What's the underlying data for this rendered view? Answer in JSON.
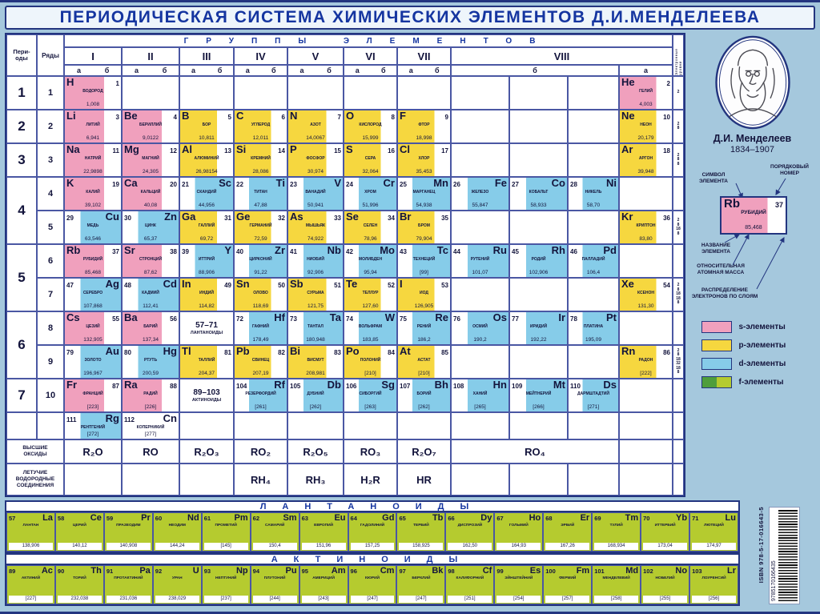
{
  "title": "ПЕРИОДИЧЕСКАЯ СИСТЕМА ХИМИЧЕСКИХ ЭЛЕМЕНТОВ Д.И.МЕНДЕЛЕЕВА",
  "colors": {
    "s": "#f0a0bd",
    "p": "#f6d73f",
    "d": "#86cce9",
    "f": "#b5cb2f",
    "f2": "#4f9e3c",
    "navy": "#23357f"
  },
  "header": {
    "groups_title": "ГРУППЫ ЭЛЕМЕНТОВ",
    "periods_label_1": "Пери-",
    "periods_label_2": "оды",
    "rows_label": "Ряды",
    "groups": [
      "I",
      "II",
      "III",
      "IV",
      "V",
      "VI",
      "VII",
      "VIII"
    ],
    "sub_a": "а",
    "sub_b": "б",
    "electron_label": "Электронные уровни"
  },
  "periods": [
    {
      "label": "1",
      "start": 1,
      "end": 1
    },
    {
      "label": "2",
      "start": 2,
      "end": 2
    },
    {
      "label": "3",
      "start": 3,
      "end": 3
    },
    {
      "label": "4",
      "start": 4,
      "end": 5
    },
    {
      "label": "5",
      "start": 6,
      "end": 7
    },
    {
      "label": "6",
      "start": 8,
      "end": 9
    },
    {
      "label": "7",
      "start": 10,
      "end": 10
    }
  ],
  "row_labels": [
    "1",
    "2",
    "3",
    "4",
    "5",
    "6",
    "7",
    "8",
    "9",
    "10"
  ],
  "element_rows": [
    {
      "econf": [
        "2"
      ],
      "cells": [
        {
          "c": 3,
          "n": "1",
          "s": "H",
          "nm": "ВОДОРОД",
          "m": "1,008",
          "k": "s"
        },
        {
          "c": 13,
          "n": "2",
          "s": "He",
          "nm": "ГЕЛИЙ",
          "m": "4,003",
          "k": "s"
        }
      ]
    },
    {
      "econf": [
        "2",
        "8"
      ],
      "cells": [
        {
          "c": 3,
          "n": "3",
          "s": "Li",
          "nm": "ЛИТИЙ",
          "m": "6,941",
          "k": "s"
        },
        {
          "c": 4,
          "n": "4",
          "s": "Be",
          "nm": "БЕРИЛЛИЙ",
          "m": "9,0122",
          "k": "s"
        },
        {
          "c": 5,
          "n": "5",
          "s": "B",
          "nm": "БОР",
          "m": "10,811",
          "k": "p"
        },
        {
          "c": 6,
          "n": "6",
          "s": "C",
          "nm": "УГЛЕРОД",
          "m": "12,011",
          "k": "p"
        },
        {
          "c": 7,
          "n": "7",
          "s": "N",
          "nm": "АЗОТ",
          "m": "14,0067",
          "k": "p"
        },
        {
          "c": 8,
          "n": "8",
          "s": "O",
          "nm": "КИСЛОРОД",
          "m": "15,999",
          "k": "p"
        },
        {
          "c": 9,
          "n": "9",
          "s": "F",
          "nm": "ФТОР",
          "m": "18,998",
          "k": "p"
        },
        {
          "c": 13,
          "n": "10",
          "s": "Ne",
          "nm": "НЕОН",
          "m": "20,179",
          "k": "p"
        }
      ]
    },
    {
      "econf": [
        "2",
        "8",
        "8"
      ],
      "cells": [
        {
          "c": 3,
          "n": "11",
          "s": "Na",
          "nm": "НАТРИЙ",
          "m": "22,9898",
          "k": "s"
        },
        {
          "c": 4,
          "n": "12",
          "s": "Mg",
          "nm": "МАГНИЙ",
          "m": "24,305",
          "k": "s"
        },
        {
          "c": 5,
          "n": "13",
          "s": "Al",
          "nm": "АЛЮМИНИЙ",
          "m": "26,98154",
          "k": "p"
        },
        {
          "c": 6,
          "n": "14",
          "s": "Si",
          "nm": "КРЕМНИЙ",
          "m": "28,086",
          "k": "p"
        },
        {
          "c": 7,
          "n": "15",
          "s": "P",
          "nm": "ФОСФОР",
          "m": "30,974",
          "k": "p"
        },
        {
          "c": 8,
          "n": "16",
          "s": "S",
          "nm": "СЕРА",
          "m": "32,064",
          "k": "p"
        },
        {
          "c": 9,
          "n": "17",
          "s": "Cl",
          "nm": "ХЛОР",
          "m": "35,453",
          "k": "p"
        },
        {
          "c": 13,
          "n": "18",
          "s": "Ar",
          "nm": "АРГОН",
          "m": "39,948",
          "k": "p"
        }
      ]
    },
    {
      "cells": [
        {
          "c": 3,
          "n": "19",
          "s": "K",
          "nm": "КАЛИЙ",
          "m": "39,102",
          "k": "s"
        },
        {
          "c": 4,
          "n": "20",
          "s": "Ca",
          "nm": "КАЛЬЦИЙ",
          "m": "40,08",
          "k": "s"
        },
        {
          "c": 5,
          "n": "21",
          "s": "Sc",
          "nm": "СКАНДИЙ",
          "m": "44,956",
          "k": "d"
        },
        {
          "c": 6,
          "n": "22",
          "s": "Ti",
          "nm": "ТИТАН",
          "m": "47,88",
          "k": "d"
        },
        {
          "c": 7,
          "n": "23",
          "s": "V",
          "nm": "ВАНАДИЙ",
          "m": "50,941",
          "k": "d"
        },
        {
          "c": 8,
          "n": "24",
          "s": "Cr",
          "nm": "ХРОМ",
          "m": "51,996",
          "k": "d"
        },
        {
          "c": 9,
          "n": "25",
          "s": "Mn",
          "nm": "МАРГАНЕЦ",
          "m": "54,938",
          "k": "d"
        },
        {
          "c": 10,
          "n": "26",
          "s": "Fe",
          "nm": "ЖЕЛЕЗО",
          "m": "55,847",
          "k": "d"
        },
        {
          "c": 11,
          "n": "27",
          "s": "Co",
          "nm": "КОБАЛЬТ",
          "m": "58,933",
          "k": "d"
        },
        {
          "c": 12,
          "n": "28",
          "s": "Ni",
          "nm": "НИКЕЛЬ",
          "m": "58,70",
          "k": "d"
        }
      ]
    },
    {
      "econf": [
        "2",
        "8",
        "18",
        "8"
      ],
      "cells": [
        {
          "c": 3,
          "n": "29",
          "s": "Cu",
          "nm": "МЕДЬ",
          "m": "63,546",
          "k": "d"
        },
        {
          "c": 4,
          "n": "30",
          "s": "Zn",
          "nm": "ЦИНК",
          "m": "65,37",
          "k": "d"
        },
        {
          "c": 5,
          "n": "31",
          "s": "Ga",
          "nm": "ГАЛЛИЙ",
          "m": "69,72",
          "k": "p"
        },
        {
          "c": 6,
          "n": "32",
          "s": "Ge",
          "nm": "ГЕРМАНИЙ",
          "m": "72,59",
          "k": "p"
        },
        {
          "c": 7,
          "n": "33",
          "s": "As",
          "nm": "МЫШЬЯК",
          "m": "74,922",
          "k": "p"
        },
        {
          "c": 8,
          "n": "34",
          "s": "Se",
          "nm": "СЕЛЕН",
          "m": "78,96",
          "k": "p"
        },
        {
          "c": 9,
          "n": "35",
          "s": "Br",
          "nm": "БРОМ",
          "m": "79,904",
          "k": "p"
        },
        {
          "c": 13,
          "n": "36",
          "s": "Kr",
          "nm": "КРИПТОН",
          "m": "83,80",
          "k": "p"
        }
      ]
    },
    {
      "cells": [
        {
          "c": 3,
          "n": "37",
          "s": "Rb",
          "nm": "РУБИДИЙ",
          "m": "85,468",
          "k": "s"
        },
        {
          "c": 4,
          "n": "38",
          "s": "Sr",
          "nm": "СТРОНЦИЙ",
          "m": "87,62",
          "k": "s"
        },
        {
          "c": 5,
          "n": "39",
          "s": "Y",
          "nm": "ИТТРИЙ",
          "m": "88,906",
          "k": "d"
        },
        {
          "c": 6,
          "n": "40",
          "s": "Zr",
          "nm": "ЦИРКОНИЙ",
          "m": "91,22",
          "k": "d"
        },
        {
          "c": 7,
          "n": "41",
          "s": "Nb",
          "nm": "НИОБИЙ",
          "m": "92,906",
          "k": "d"
        },
        {
          "c": 8,
          "n": "42",
          "s": "Mo",
          "nm": "МОЛИБДЕН",
          "m": "95,94",
          "k": "d"
        },
        {
          "c": 9,
          "n": "43",
          "s": "Tc",
          "nm": "ТЕХНЕЦИЙ",
          "m": "[99]",
          "k": "d"
        },
        {
          "c": 10,
          "n": "44",
          "s": "Ru",
          "nm": "РУТЕНИЙ",
          "m": "101,07",
          "k": "d"
        },
        {
          "c": 11,
          "n": "45",
          "s": "Rh",
          "nm": "РОДИЙ",
          "m": "102,906",
          "k": "d"
        },
        {
          "c": 12,
          "n": "46",
          "s": "Pd",
          "nm": "ПАЛЛАДИЙ",
          "m": "106,4",
          "k": "d"
        }
      ]
    },
    {
      "econf": [
        "2",
        "8",
        "18",
        "18",
        "8"
      ],
      "cells": [
        {
          "c": 3,
          "n": "47",
          "s": "Ag",
          "nm": "СЕРЕБРО",
          "m": "107,868",
          "k": "d"
        },
        {
          "c": 4,
          "n": "48",
          "s": "Cd",
          "nm": "КАДМИЙ",
          "m": "112,41",
          "k": "d"
        },
        {
          "c": 5,
          "n": "49",
          "s": "In",
          "nm": "ИНДИЙ",
          "m": "114,82",
          "k": "p"
        },
        {
          "c": 6,
          "n": "50",
          "s": "Sn",
          "nm": "ОЛОВО",
          "m": "118,69",
          "k": "p"
        },
        {
          "c": 7,
          "n": "51",
          "s": "Sb",
          "nm": "СУРЬМА",
          "m": "121,75",
          "k": "p"
        },
        {
          "c": 8,
          "n": "52",
          "s": "Te",
          "nm": "ТЕЛЛУР",
          "m": "127,60",
          "k": "p"
        },
        {
          "c": 9,
          "n": "53",
          "s": "I",
          "nm": "ИОД",
          "m": "126,905",
          "k": "p"
        },
        {
          "c": 13,
          "n": "54",
          "s": "Xe",
          "nm": "КСЕНОН",
          "m": "131,30",
          "k": "p"
        }
      ]
    },
    {
      "cells": [
        {
          "c": 3,
          "n": "55",
          "s": "Cs",
          "nm": "ЦЕЗИЙ",
          "m": "132,905",
          "k": "s"
        },
        {
          "c": 4,
          "n": "56",
          "s": "Ba",
          "nm": "БАРИЙ",
          "m": "137,34",
          "k": "s"
        },
        {
          "c": 5,
          "box": true,
          "n": "57–71",
          "nm": "ЛАНТАНОИДЫ"
        },
        {
          "c": 6,
          "n": "72",
          "s": "Hf",
          "nm": "ГАФНИЙ",
          "m": "178,49",
          "k": "d"
        },
        {
          "c": 7,
          "n": "73",
          "s": "Ta",
          "nm": "ТАНТАЛ",
          "m": "180,948",
          "k": "d"
        },
        {
          "c": 8,
          "n": "74",
          "s": "W",
          "nm": "ВОЛЬФРАМ",
          "m": "183,85",
          "k": "d"
        },
        {
          "c": 9,
          "n": "75",
          "s": "Re",
          "nm": "РЕНИЙ",
          "m": "186,2",
          "k": "d"
        },
        {
          "c": 10,
          "n": "76",
          "s": "Os",
          "nm": "ОСМИЙ",
          "m": "190,2",
          "k": "d"
        },
        {
          "c": 11,
          "n": "77",
          "s": "Ir",
          "nm": "ИРИДИЙ",
          "m": "192,22",
          "k": "d"
        },
        {
          "c": 12,
          "n": "78",
          "s": "Pt",
          "nm": "ПЛАТИНА",
          "m": "195,09",
          "k": "d"
        }
      ]
    },
    {
      "econf": [
        "2",
        "8",
        "18",
        "32",
        "18",
        "8"
      ],
      "cells": [
        {
          "c": 3,
          "n": "79",
          "s": "Au",
          "nm": "ЗОЛОТО",
          "m": "196,967",
          "k": "d"
        },
        {
          "c": 4,
          "n": "80",
          "s": "Hg",
          "nm": "РТУТЬ",
          "m": "200,59",
          "k": "d"
        },
        {
          "c": 5,
          "n": "81",
          "s": "Tl",
          "nm": "ТАЛЛИЙ",
          "m": "204,37",
          "k": "p"
        },
        {
          "c": 6,
          "n": "82",
          "s": "Pb",
          "nm": "СВИНЕЦ",
          "m": "207,19",
          "k": "p"
        },
        {
          "c": 7,
          "n": "83",
          "s": "Bi",
          "nm": "ВИСМУТ",
          "m": "208,981",
          "k": "p"
        },
        {
          "c": 8,
          "n": "84",
          "s": "Po",
          "nm": "ПОЛОНИЙ",
          "m": "[210]",
          "k": "p"
        },
        {
          "c": 9,
          "n": "85",
          "s": "At",
          "nm": "АСТАТ",
          "m": "[210]",
          "k": "p"
        },
        {
          "c": 13,
          "n": "86",
          "s": "Rn",
          "nm": "РАДОН",
          "m": "[222]",
          "k": "p"
        }
      ]
    },
    {
      "cells": [
        {
          "c": 3,
          "n": "87",
          "s": "Fr",
          "nm": "ФРАНЦИЙ",
          "m": "[223]",
          "k": "s"
        },
        {
          "c": 4,
          "n": "88",
          "s": "Ra",
          "nm": "РАДИЙ",
          "m": "[226]",
          "k": "s"
        },
        {
          "c": 5,
          "box": true,
          "n": "89–103",
          "nm": "АКТИНОИДЫ"
        },
        {
          "c": 6,
          "n": "104",
          "s": "Rf",
          "nm": "РЕЗЕРФОРДИЙ",
          "m": "[261]",
          "k": "d"
        },
        {
          "c": 7,
          "n": "105",
          "s": "Db",
          "nm": "ДУБНИЙ",
          "m": "[262]",
          "k": "d"
        },
        {
          "c": 8,
          "n": "106",
          "s": "Sg",
          "nm": "СИБОРГИЙ",
          "m": "[263]",
          "k": "d"
        },
        {
          "c": 9,
          "n": "107",
          "s": "Bh",
          "nm": "БОРИЙ",
          "m": "[262]",
          "k": "d"
        },
        {
          "c": 10,
          "n": "108",
          "s": "Hn",
          "nm": "ХАНИЙ",
          "m": "[265]",
          "k": "d"
        },
        {
          "c": 11,
          "n": "109",
          "s": "Mt",
          "nm": "МЕЙТНЕРИЙ",
          "m": "[266]",
          "k": "d"
        },
        {
          "c": 12,
          "n": "110",
          "s": "Ds",
          "nm": "ДАРМШТАДТИЙ",
          "m": "[271]",
          "k": "d"
        }
      ]
    },
    {
      "cells": [
        {
          "c": 3,
          "n": "111",
          "s": "Rg",
          "nm": "РЕНТГЕНИЙ",
          "m": "[272]",
          "k": "d"
        },
        {
          "c": 4,
          "n": "112",
          "s": "Cn",
          "nm": "КОПЕРНИКИЙ",
          "m": "[277]",
          "k": "w",
          "nl": true
        }
      ]
    }
  ],
  "oxides": {
    "label": "ВЫСШИЕ ОКСИДЫ",
    "cells": [
      {
        "col": 3,
        "t": "R₂O"
      },
      {
        "col": 4,
        "t": "RO"
      },
      {
        "col": 5,
        "t": "R₂O₃"
      },
      {
        "col": 6,
        "t": "RO₂"
      },
      {
        "col": 7,
        "t": "R₂O₅"
      },
      {
        "col": 8,
        "t": "RO₃"
      },
      {
        "col": 9,
        "t": "R₂O₇"
      },
      {
        "col": 10,
        "span": 3,
        "t": "RO₄"
      }
    ]
  },
  "hydrides": {
    "label": "ЛЕТУЧИЕ ВОДОРОДНЫЕ СОЕДИНЕНИЯ",
    "cells": [
      {
        "col": 6,
        "t": "RH₄"
      },
      {
        "col": 7,
        "t": "RH₃"
      },
      {
        "col": 8,
        "t": "H₂R"
      },
      {
        "col": 9,
        "t": "HR"
      }
    ]
  },
  "bottom": {
    "lanthanides_title": "ЛАНТАНОИДЫ",
    "actinides_title": "АКТИНОИДЫ",
    "lanthanides": [
      {
        "n": "57",
        "s": "La",
        "nm": "ЛАНТАН",
        "m": "138,906"
      },
      {
        "n": "58",
        "s": "Ce",
        "nm": "ЦЕРИЙ",
        "m": "140,12"
      },
      {
        "n": "59",
        "s": "Pr",
        "nm": "ПРАЗЕОДИМ",
        "m": "140,908"
      },
      {
        "n": "60",
        "s": "Nd",
        "nm": "НЕОДИМ",
        "m": "144,24"
      },
      {
        "n": "61",
        "s": "Pm",
        "nm": "ПРОМЕТИЙ",
        "m": "[145]"
      },
      {
        "n": "62",
        "s": "Sm",
        "nm": "САМАРИЙ",
        "m": "150,4"
      },
      {
        "n": "63",
        "s": "Eu",
        "nm": "ЕВРОПИЙ",
        "m": "151,96"
      },
      {
        "n": "64",
        "s": "Gd",
        "nm": "ГАДОЛИНИЙ",
        "m": "157,25"
      },
      {
        "n": "65",
        "s": "Tb",
        "nm": "ТЕРБИЙ",
        "m": "158,925"
      },
      {
        "n": "66",
        "s": "Dy",
        "nm": "ДИСПРОЗИЙ",
        "m": "162,50"
      },
      {
        "n": "67",
        "s": "Ho",
        "nm": "ГОЛЬМИЙ",
        "m": "164,93"
      },
      {
        "n": "68",
        "s": "Er",
        "nm": "ЭРБИЙ",
        "m": "167,26"
      },
      {
        "n": "69",
        "s": "Tm",
        "nm": "ТУЛИЙ",
        "m": "168,934"
      },
      {
        "n": "70",
        "s": "Yb",
        "nm": "ИТТЕРБИЙ",
        "m": "173,04"
      },
      {
        "n": "71",
        "s": "Lu",
        "nm": "ЛЮТЕЦИЙ",
        "m": "174,97"
      }
    ],
    "actinides": [
      {
        "n": "89",
        "s": "Ac",
        "nm": "АКТИНИЙ",
        "m": "[227]"
      },
      {
        "n": "90",
        "s": "Th",
        "nm": "ТОРИЙ",
        "m": "232,038"
      },
      {
        "n": "91",
        "s": "Pa",
        "nm": "ПРОТАКТИ­НИЙ",
        "m": "231,036"
      },
      {
        "n": "92",
        "s": "U",
        "nm": "УРАН",
        "m": "238,029"
      },
      {
        "n": "93",
        "s": "Np",
        "nm": "НЕПТУНИЙ",
        "m": "[237]"
      },
      {
        "n": "94",
        "s": "Pu",
        "nm": "ПЛУТОНИЙ",
        "m": "[244]"
      },
      {
        "n": "95",
        "s": "Am",
        "nm": "АМЕРИЦИЙ",
        "m": "[243]"
      },
      {
        "n": "96",
        "s": "Cm",
        "nm": "КЮРИЙ",
        "m": "[247]"
      },
      {
        "n": "97",
        "s": "Bk",
        "nm": "БЕРКЛИЙ",
        "m": "[247]"
      },
      {
        "n": "98",
        "s": "Cf",
        "nm": "КАЛИФОРНИЙ",
        "m": "[251]"
      },
      {
        "n": "99",
        "s": "Es",
        "nm": "ЭЙНШТЕЙНИЙ",
        "m": "[254]"
      },
      {
        "n": "100",
        "s": "Fm",
        "nm": "ФЕРМИЙ",
        "m": "[257]"
      },
      {
        "n": "101",
        "s": "Md",
        "nm": "МЕНДЕЛЕВИЙ",
        "m": "[258]"
      },
      {
        "n": "102",
        "s": "No",
        "nm": "НОБЕЛИЙ",
        "m": "[255]"
      },
      {
        "n": "103",
        "s": "Lr",
        "nm": "ЛОУРЕНСИЙ",
        "m": "[256]"
      }
    ]
  },
  "sidebar": {
    "portrait_name": "Д.И. Менделеев",
    "years": "1834–1907",
    "labels": {
      "symbol": "СИМВОЛ ЭЛЕМЕНТА",
      "number": "ПОРЯДКОВЫЙ НОМЕР",
      "name": "НАЗВАНИЕ ЭЛЕМЕНТА",
      "mass": "ОТНОСИТЕЛЬНАЯ АТОМНАЯ МАССА",
      "electrons": "РАСПРЕДЕЛЕНИЕ ЭЛЕКТРОНОВ ПО СЛОЯМ"
    },
    "sample": {
      "n": "37",
      "s": "Rb",
      "nm": "РУБИДИЙ",
      "m": "85,468"
    },
    "legend": [
      {
        "k": "s",
        "label": "s-элементы"
      },
      {
        "k": "p",
        "label": "p-элементы"
      },
      {
        "k": "d",
        "label": "d-элементы"
      },
      {
        "k": "f",
        "label": "f-элементы"
      }
    ]
  },
  "isbn": {
    "text": "ISBN 978-5-17-016643-5",
    "digits": "9785170166435"
  }
}
